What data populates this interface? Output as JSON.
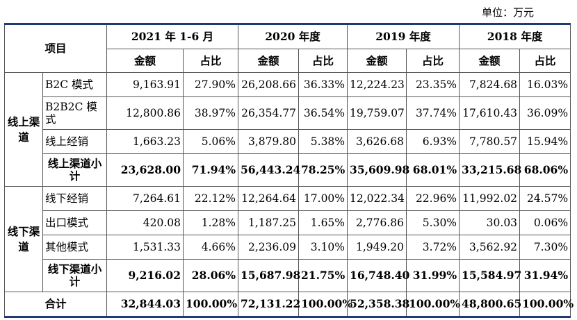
{
  "unit_label": "单位：万元",
  "header": {
    "item": "项目",
    "periods": [
      "2021 年 1-6 月",
      "2020 年度",
      "2019 年度",
      "2018 年度"
    ],
    "amount": "金额",
    "ratio": "占比"
  },
  "online": {
    "group_label": "线上渠道",
    "rows": [
      {
        "label": "B2C 模式",
        "values": [
          "9,163.91",
          "27.90%",
          "26,208.66",
          "36.33%",
          "12,224.23",
          "23.35%",
          "7,824.68",
          "16.03%"
        ]
      },
      {
        "label": "B2B2C 模式",
        "values": [
          "12,800.86",
          "38.97%",
          "26,354.77",
          "36.54%",
          "19,759.07",
          "37.74%",
          "17,610.43",
          "36.09%"
        ]
      },
      {
        "label": "线上经销",
        "values": [
          "1,663.23",
          "5.06%",
          "3,879.80",
          "5.38%",
          "3,626.68",
          "6.93%",
          "7,780.57",
          "15.94%"
        ]
      }
    ],
    "subtotal": {
      "label": "线上渠道小计",
      "values": [
        "23,628.00",
        "71.94%",
        "56,443.24",
        "78.25%",
        "35,609.98",
        "68.01%",
        "33,215.68",
        "68.06%"
      ]
    }
  },
  "offline": {
    "group_label": "线下渠道",
    "rows": [
      {
        "label": "线下经销",
        "values": [
          "7,264.61",
          "22.12%",
          "12,264.64",
          "17.00%",
          "12,022.34",
          "22.96%",
          "11,992.02",
          "24.57%"
        ]
      },
      {
        "label": "出口模式",
        "values": [
          "420.08",
          "1.28%",
          "1,187.25",
          "1.65%",
          "2,776.86",
          "5.30%",
          "30.03",
          "0.06%"
        ]
      },
      {
        "label": "其他模式",
        "values": [
          "1,531.33",
          "4.66%",
          "2,236.09",
          "3.10%",
          "1,949.20",
          "3.72%",
          "3,562.92",
          "7.30%"
        ]
      }
    ],
    "subtotal": {
      "label": "线下渠道小计",
      "values": [
        "9,216.02",
        "28.06%",
        "15,687.98",
        "21.75%",
        "16,748.40",
        "31.99%",
        "15,584.97",
        "31.94%"
      ]
    }
  },
  "total": {
    "label": "合计",
    "values": [
      "32,844.03",
      "100.00%",
      "72,131.22",
      "100.00%",
      "52,358.38",
      "100.00%",
      "48,800.65",
      "100.00%"
    ]
  }
}
